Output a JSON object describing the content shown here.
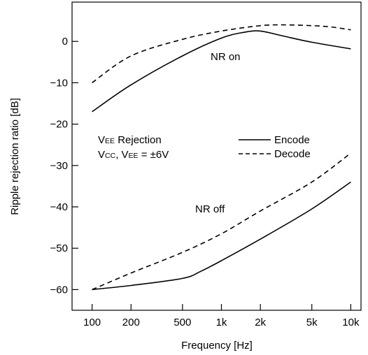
{
  "chart_data": {
    "type": "line",
    "xscale": "log",
    "xlabel": "Frequency  [Hz]",
    "ylabel": "Ripple rejection ratio  [dB]",
    "xlim": [
      70,
      12000
    ],
    "ylim": [
      -65,
      9.5
    ],
    "grid": false,
    "x_ticks": [
      {
        "value": 100,
        "label": "100"
      },
      {
        "value": 200,
        "label": "200"
      },
      {
        "value": 500,
        "label": "500"
      },
      {
        "value": 1000,
        "label": "1k"
      },
      {
        "value": 2000,
        "label": "2k"
      },
      {
        "value": 5000,
        "label": "5k"
      },
      {
        "value": 10000,
        "label": "10k"
      }
    ],
    "y_ticks": [
      {
        "value": 0,
        "label": "0"
      },
      {
        "value": -10,
        "label": "−10"
      },
      {
        "value": -20,
        "label": "−20"
      },
      {
        "value": -30,
        "label": "−30"
      },
      {
        "value": -40,
        "label": "−40"
      },
      {
        "value": -50,
        "label": "−50"
      },
      {
        "value": -60,
        "label": "−60"
      }
    ],
    "series": [
      {
        "name": "Encode",
        "group": "NR on",
        "style": "solid",
        "x": [
          100,
          200,
          500,
          1000,
          1500,
          2000,
          3000,
          5000,
          10000
        ],
        "y": [
          -17,
          -10.5,
          -3.5,
          0.8,
          2.2,
          2.5,
          1.3,
          -0.2,
          -1.8
        ]
      },
      {
        "name": "Decode",
        "group": "NR on",
        "style": "dashed",
        "x": [
          100,
          200,
          500,
          1000,
          2000,
          3000,
          5000,
          7000,
          10000
        ],
        "y": [
          -10,
          -3.5,
          0.5,
          2.5,
          3.8,
          4,
          3.8,
          3.5,
          2.8
        ]
      },
      {
        "name": "Encode",
        "group": "NR off",
        "style": "solid",
        "x": [
          100,
          200,
          500,
          700,
          1000,
          2000,
          5000,
          10000
        ],
        "y": [
          -60,
          -59,
          -57.3,
          -55.5,
          -53,
          -47.8,
          -40.5,
          -34
        ]
      },
      {
        "name": "Decode",
        "group": "NR off",
        "style": "dashed",
        "x": [
          100,
          200,
          500,
          1000,
          2000,
          5000,
          10000
        ],
        "y": [
          -60,
          -56,
          -51,
          -46.5,
          -41,
          -34,
          -27
        ]
      }
    ],
    "annotations": {
      "nr_on": "NR on",
      "nr_off": "NR off",
      "condition_title": {
        "main": "V",
        "sub": "EE",
        "rest": " Rejection"
      },
      "condition_supply": {
        "v1": "V",
        "sub1": "CC",
        "sep": ", V",
        "sub2": "EE",
        "rest": " = ±6V"
      }
    },
    "legend": {
      "position": "middle-right",
      "entries": [
        {
          "label": "Encode",
          "style": "solid"
        },
        {
          "label": "Decode",
          "style": "dashed"
        }
      ]
    }
  }
}
